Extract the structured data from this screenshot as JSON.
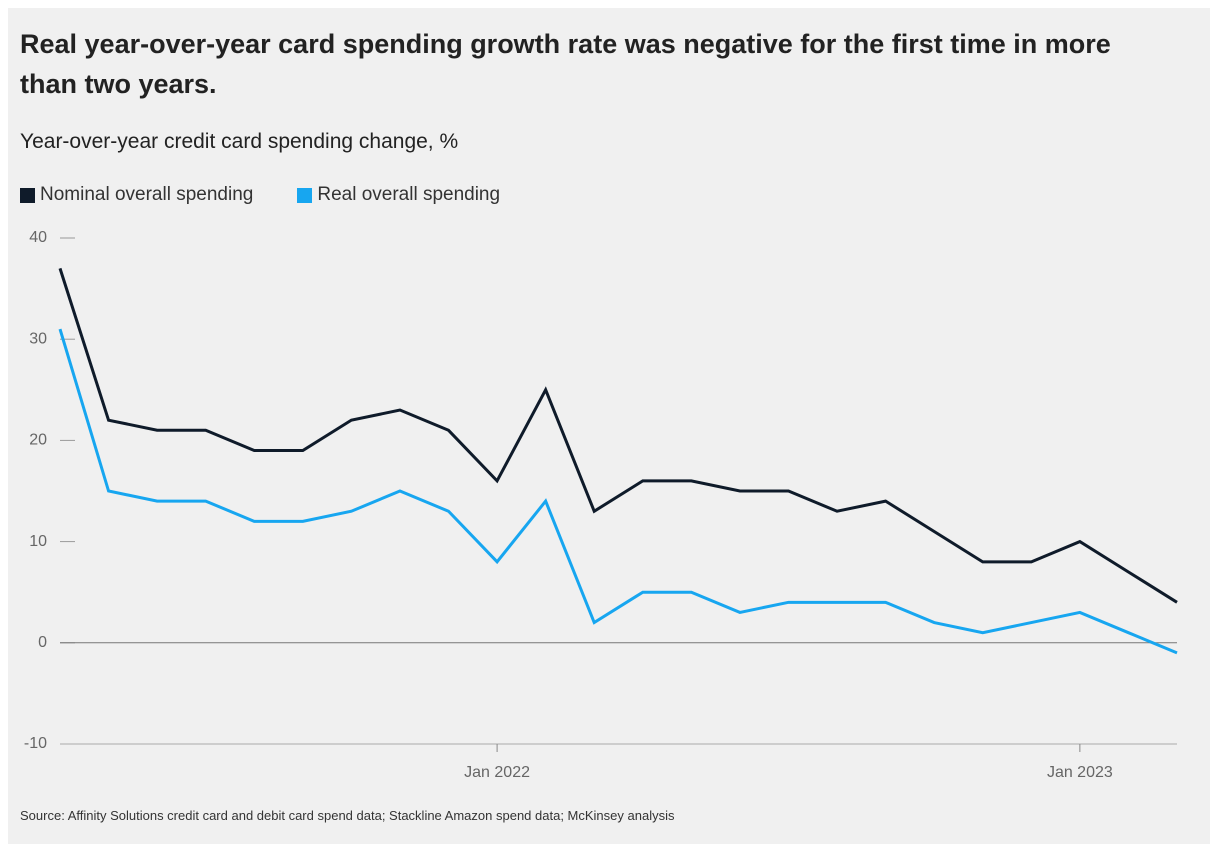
{
  "chart_data": {
    "type": "line",
    "title": "Real year-over-year card spending growth rate was negative for the first time in more than two years.",
    "subtitle": "Year-over-year credit card spending change, %",
    "categories": [
      null,
      null,
      null,
      null,
      null,
      null,
      null,
      null,
      null,
      "Jan 2022",
      null,
      null,
      null,
      null,
      null,
      null,
      null,
      null,
      null,
      null,
      null,
      "Jan 2023",
      null,
      null
    ],
    "series": [
      {
        "name": "Nominal overall spending",
        "color": "#0f1b2a",
        "values": [
          37,
          22,
          21,
          21,
          19,
          19,
          22,
          23,
          21,
          16,
          25,
          13,
          16,
          16,
          15,
          15,
          13,
          14,
          11,
          8,
          8,
          10,
          7,
          4
        ]
      },
      {
        "name": "Real overall spending",
        "color": "#17a6f0",
        "values": [
          31,
          15,
          14,
          14,
          12,
          12,
          13,
          15,
          13,
          8,
          14,
          2,
          5,
          5,
          3,
          4,
          4,
          4,
          2,
          1,
          2,
          3,
          1,
          -1
        ]
      }
    ],
    "ylim": [
      -10,
      40
    ],
    "yticks": [
      -10,
      0,
      10,
      20,
      30,
      40
    ],
    "grid": false,
    "source": "Source: Affinity Solutions credit card and debit card spend data; Stackline Amazon spend data; McKinsey analysis"
  }
}
